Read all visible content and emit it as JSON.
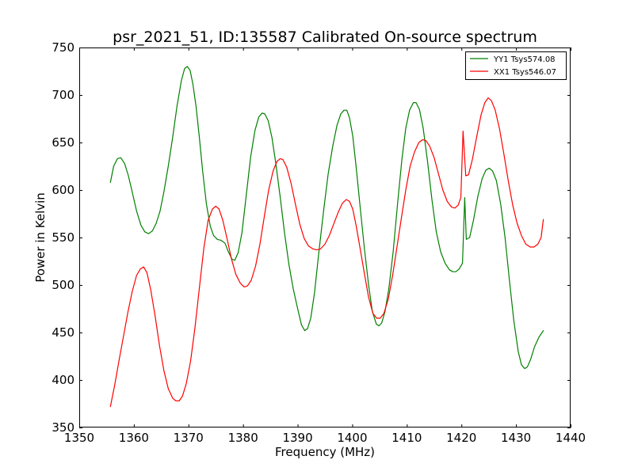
{
  "chart_data": {
    "type": "line",
    "title": "psr_2021_51, ID:135587 Calibrated On-source spectrum",
    "xlabel": "Frequency (MHz)",
    "ylabel": "Power in Kelvin",
    "xlim": [
      1350,
      1440
    ],
    "ylim": [
      350,
      750
    ],
    "xticks": [
      1350,
      1360,
      1370,
      1380,
      1390,
      1400,
      1410,
      1420,
      1430,
      1440
    ],
    "yticks": [
      350,
      400,
      450,
      500,
      550,
      600,
      650,
      700,
      750
    ],
    "grid": false,
    "legend_position": "top-right",
    "series": [
      {
        "name": "YY1 Tsys574.08",
        "color": "#008000",
        "points": [
          [
            1355.7,
            608
          ],
          [
            1356.3,
            625
          ],
          [
            1357.0,
            633
          ],
          [
            1357.6,
            634
          ],
          [
            1358.3,
            628
          ],
          [
            1359.0,
            615
          ],
          [
            1359.7,
            598
          ],
          [
            1360.5,
            578
          ],
          [
            1361.3,
            563
          ],
          [
            1362.0,
            556
          ],
          [
            1362.7,
            554
          ],
          [
            1363.4,
            557
          ],
          [
            1364.1,
            565
          ],
          [
            1364.8,
            578
          ],
          [
            1365.5,
            598
          ],
          [
            1366.3,
            625
          ],
          [
            1367.1,
            655
          ],
          [
            1367.9,
            688
          ],
          [
            1368.7,
            715
          ],
          [
            1369.3,
            728
          ],
          [
            1369.8,
            730
          ],
          [
            1370.3,
            726
          ],
          [
            1370.8,
            712
          ],
          [
            1371.4,
            688
          ],
          [
            1372.0,
            655
          ],
          [
            1372.6,
            620
          ],
          [
            1373.3,
            585
          ],
          [
            1374.0,
            562
          ],
          [
            1374.6,
            552
          ],
          [
            1375.3,
            548
          ],
          [
            1376.0,
            547
          ],
          [
            1376.7,
            544
          ],
          [
            1377.3,
            535
          ],
          [
            1378.0,
            527
          ],
          [
            1378.5,
            526
          ],
          [
            1379.1,
            534
          ],
          [
            1379.8,
            555
          ],
          [
            1380.6,
            595
          ],
          [
            1381.4,
            635
          ],
          [
            1382.2,
            663
          ],
          [
            1382.9,
            677
          ],
          [
            1383.5,
            681
          ],
          [
            1384.0,
            680
          ],
          [
            1384.6,
            673
          ],
          [
            1385.3,
            655
          ],
          [
            1386.0,
            628
          ],
          [
            1386.8,
            593
          ],
          [
            1387.6,
            555
          ],
          [
            1388.4,
            522
          ],
          [
            1389.2,
            496
          ],
          [
            1390.0,
            475
          ],
          [
            1390.7,
            458
          ],
          [
            1391.3,
            452
          ],
          [
            1391.8,
            454
          ],
          [
            1392.4,
            465
          ],
          [
            1393.1,
            492
          ],
          [
            1393.9,
            535
          ],
          [
            1394.8,
            580
          ],
          [
            1395.6,
            617
          ],
          [
            1396.4,
            645
          ],
          [
            1397.2,
            668
          ],
          [
            1397.9,
            680
          ],
          [
            1398.5,
            684
          ],
          [
            1399.0,
            684
          ],
          [
            1399.5,
            676
          ],
          [
            1400.1,
            657
          ],
          [
            1400.7,
            625
          ],
          [
            1401.4,
            585
          ],
          [
            1402.2,
            540
          ],
          [
            1403.0,
            500
          ],
          [
            1403.7,
            472
          ],
          [
            1404.4,
            459
          ],
          [
            1404.9,
            457
          ],
          [
            1405.4,
            460
          ],
          [
            1406.0,
            472
          ],
          [
            1406.7,
            496
          ],
          [
            1407.5,
            535
          ],
          [
            1408.3,
            585
          ],
          [
            1409.1,
            632
          ],
          [
            1409.8,
            665
          ],
          [
            1410.5,
            684
          ],
          [
            1411.2,
            692
          ],
          [
            1411.7,
            692
          ],
          [
            1412.3,
            685
          ],
          [
            1413.0,
            665
          ],
          [
            1413.8,
            630
          ],
          [
            1414.6,
            590
          ],
          [
            1415.4,
            556
          ],
          [
            1416.2,
            535
          ],
          [
            1417.0,
            523
          ],
          [
            1417.8,
            516
          ],
          [
            1418.4,
            514
          ],
          [
            1419.0,
            514
          ],
          [
            1419.6,
            517
          ],
          [
            1420.2,
            523
          ],
          [
            1420.6,
            592
          ],
          [
            1420.9,
            548
          ],
          [
            1421.5,
            550
          ],
          [
            1422.2,
            568
          ],
          [
            1423.0,
            593
          ],
          [
            1423.8,
            612
          ],
          [
            1424.5,
            621
          ],
          [
            1425.1,
            623
          ],
          [
            1425.7,
            620
          ],
          [
            1426.4,
            610
          ],
          [
            1427.2,
            585
          ],
          [
            1428.0,
            550
          ],
          [
            1428.8,
            505
          ],
          [
            1429.6,
            462
          ],
          [
            1430.4,
            430
          ],
          [
            1431.0,
            416
          ],
          [
            1431.6,
            412
          ],
          [
            1432.1,
            414
          ],
          [
            1432.7,
            422
          ],
          [
            1433.4,
            435
          ],
          [
            1434.2,
            445
          ],
          [
            1435.0,
            452
          ]
        ]
      },
      {
        "name": "XX1 Tsys546.07",
        "color": "#ff0000",
        "points": [
          [
            1355.7,
            372
          ],
          [
            1356.5,
            395
          ],
          [
            1357.3,
            421
          ],
          [
            1358.1,
            446
          ],
          [
            1358.9,
            471
          ],
          [
            1359.7,
            493
          ],
          [
            1360.5,
            510
          ],
          [
            1361.2,
            517
          ],
          [
            1361.8,
            519
          ],
          [
            1362.4,
            513
          ],
          [
            1363.1,
            495
          ],
          [
            1363.9,
            467
          ],
          [
            1364.7,
            436
          ],
          [
            1365.5,
            410
          ],
          [
            1366.3,
            391
          ],
          [
            1367.1,
            381
          ],
          [
            1367.7,
            378
          ],
          [
            1368.3,
            378
          ],
          [
            1368.9,
            383
          ],
          [
            1369.6,
            396
          ],
          [
            1370.4,
            420
          ],
          [
            1371.2,
            455
          ],
          [
            1372.0,
            497
          ],
          [
            1372.8,
            538
          ],
          [
            1373.6,
            568
          ],
          [
            1374.4,
            580
          ],
          [
            1375.0,
            583
          ],
          [
            1375.6,
            580
          ],
          [
            1376.3,
            568
          ],
          [
            1377.1,
            548
          ],
          [
            1377.9,
            527
          ],
          [
            1378.7,
            511
          ],
          [
            1379.5,
            502
          ],
          [
            1380.2,
            498
          ],
          [
            1380.8,
            499
          ],
          [
            1381.5,
            505
          ],
          [
            1382.3,
            520
          ],
          [
            1383.1,
            543
          ],
          [
            1383.9,
            572
          ],
          [
            1384.7,
            600
          ],
          [
            1385.5,
            620
          ],
          [
            1386.2,
            630
          ],
          [
            1386.8,
            633
          ],
          [
            1387.3,
            632
          ],
          [
            1388.0,
            624
          ],
          [
            1388.8,
            607
          ],
          [
            1389.6,
            585
          ],
          [
            1390.4,
            564
          ],
          [
            1391.2,
            549
          ],
          [
            1392.0,
            541
          ],
          [
            1392.8,
            538
          ],
          [
            1393.5,
            537
          ],
          [
            1394.2,
            538
          ],
          [
            1395.0,
            543
          ],
          [
            1395.8,
            552
          ],
          [
            1396.6,
            564
          ],
          [
            1397.4,
            576
          ],
          [
            1398.2,
            586
          ],
          [
            1398.9,
            590
          ],
          [
            1399.5,
            588
          ],
          [
            1400.1,
            580
          ],
          [
            1400.7,
            563
          ],
          [
            1401.4,
            540
          ],
          [
            1402.2,
            513
          ],
          [
            1403.0,
            487
          ],
          [
            1403.8,
            470
          ],
          [
            1404.5,
            465
          ],
          [
            1405.1,
            465
          ],
          [
            1405.8,
            470
          ],
          [
            1406.6,
            485
          ],
          [
            1407.4,
            510
          ],
          [
            1408.2,
            540
          ],
          [
            1409.0,
            570
          ],
          [
            1409.8,
            600
          ],
          [
            1410.6,
            625
          ],
          [
            1411.4,
            640
          ],
          [
            1412.2,
            650
          ],
          [
            1412.9,
            653
          ],
          [
            1413.5,
            652
          ],
          [
            1414.2,
            646
          ],
          [
            1415.0,
            634
          ],
          [
            1415.8,
            617
          ],
          [
            1416.6,
            600
          ],
          [
            1417.4,
            588
          ],
          [
            1418.2,
            582
          ],
          [
            1418.8,
            581
          ],
          [
            1419.4,
            584
          ],
          [
            1419.9,
            592
          ],
          [
            1420.3,
            662
          ],
          [
            1420.8,
            615
          ],
          [
            1421.3,
            616
          ],
          [
            1422.0,
            632
          ],
          [
            1422.8,
            656
          ],
          [
            1423.6,
            679
          ],
          [
            1424.3,
            692
          ],
          [
            1424.9,
            697
          ],
          [
            1425.5,
            694
          ],
          [
            1426.2,
            684
          ],
          [
            1427.0,
            664
          ],
          [
            1427.8,
            637
          ],
          [
            1428.6,
            609
          ],
          [
            1429.4,
            584
          ],
          [
            1430.2,
            565
          ],
          [
            1431.0,
            552
          ],
          [
            1431.8,
            543
          ],
          [
            1432.6,
            540
          ],
          [
            1433.3,
            540
          ],
          [
            1434.0,
            543
          ],
          [
            1434.6,
            550
          ],
          [
            1435.0,
            569
          ]
        ]
      }
    ]
  }
}
